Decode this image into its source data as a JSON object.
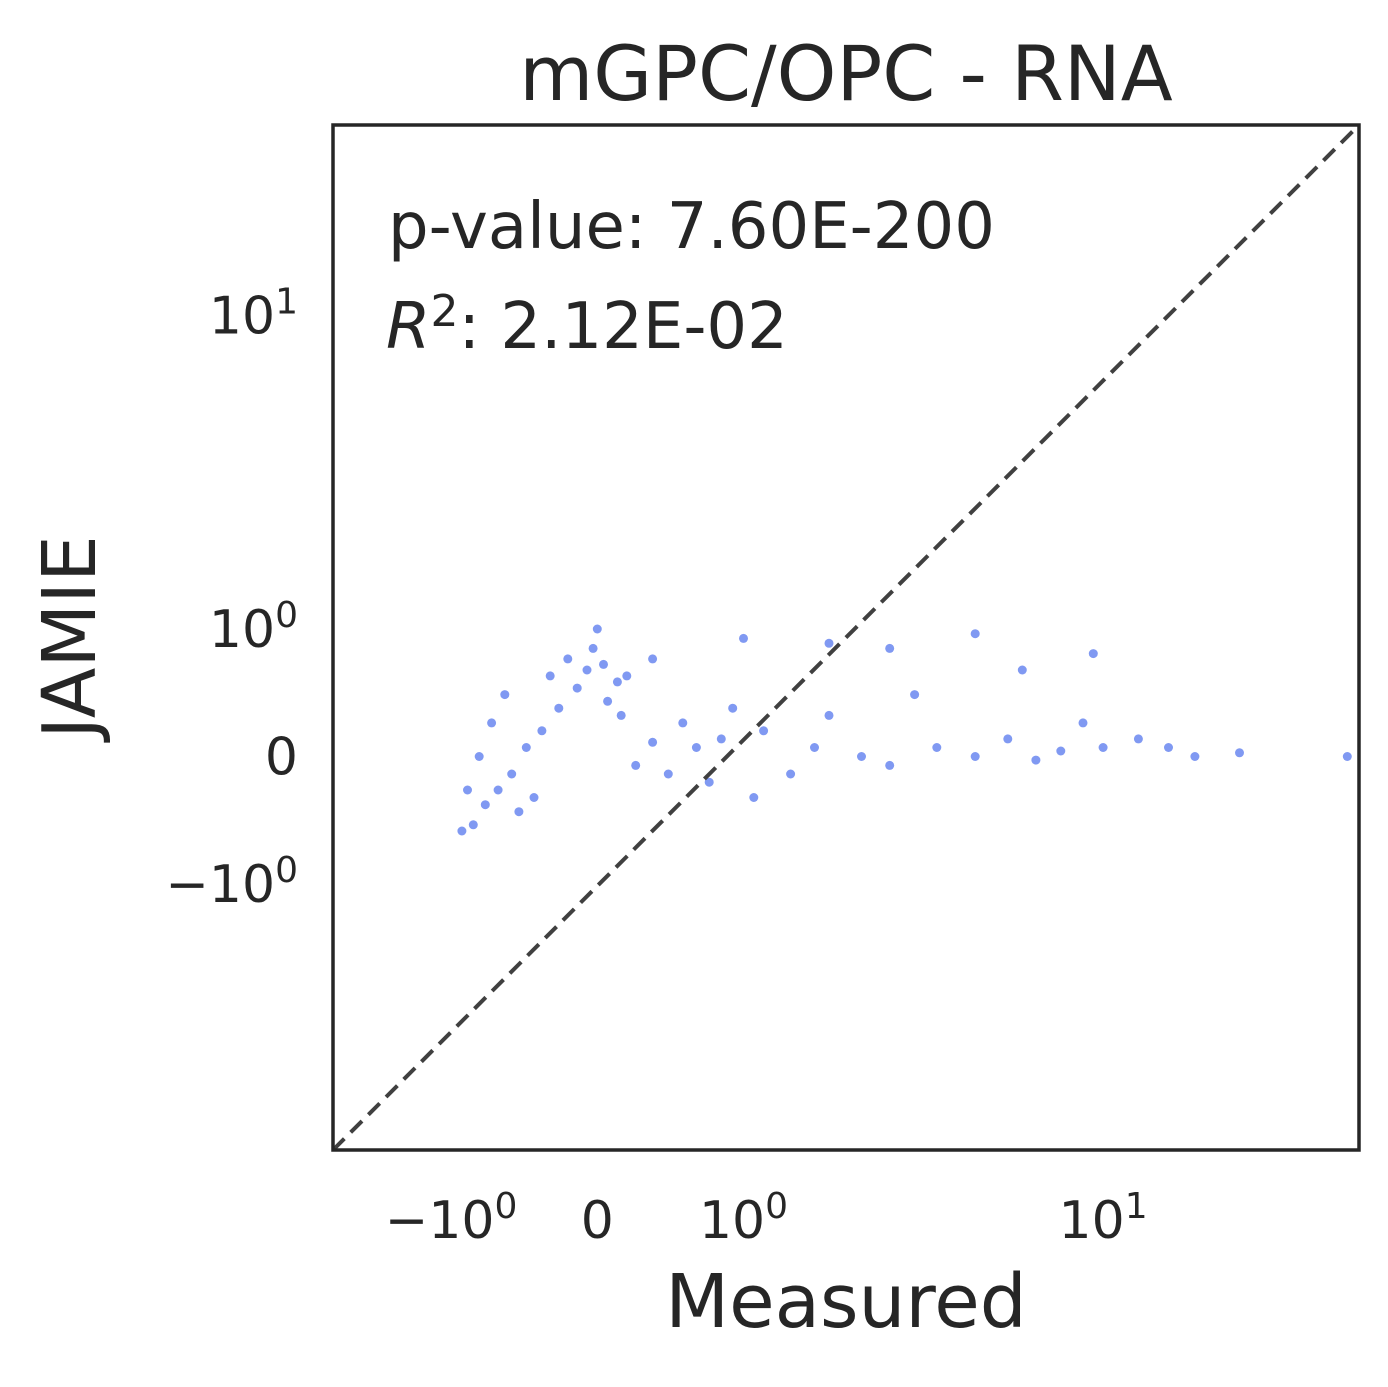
{
  "chart_data": {
    "type": "scatter",
    "title": "mGPC/OPC - RNA",
    "xlabel": "Measured",
    "ylabel": "JAMIE",
    "xscale": "symlog",
    "yscale": "symlog",
    "xlim": [
      -2.5,
      36
    ],
    "ylim": [
      -7.5,
      30
    ],
    "xticks": [
      {
        "value": -1,
        "base": "−10",
        "exp": "0"
      },
      {
        "value": 0,
        "base": "0",
        "exp": ""
      },
      {
        "value": 1,
        "base": "10",
        "exp": "0"
      },
      {
        "value": 10,
        "base": "10",
        "exp": "1"
      }
    ],
    "yticks": [
      {
        "value": -1,
        "base": "−10",
        "exp": "0"
      },
      {
        "value": 0,
        "base": "0",
        "exp": ""
      },
      {
        "value": 1,
        "base": "10",
        "exp": "0"
      },
      {
        "value": 10,
        "base": "10",
        "exp": "1"
      }
    ],
    "annotations": {
      "pvalue": "p-value: 7.60E-200",
      "r2_label": "R",
      "r2_exp": "2",
      "r2_value": ": 2.12E-02"
    },
    "identity_line": true,
    "grid": false,
    "legend": "none",
    "point_color": "#8099F2",
    "line_color": "#404040",
    "series": [
      {
        "points": [
          [
            -0.8,
            -0.45
          ],
          [
            -0.7,
            -0.3
          ],
          [
            -0.6,
            -0.2
          ],
          [
            -0.5,
            -0.1
          ],
          [
            -0.4,
            0.05
          ],
          [
            -0.3,
            0.15
          ],
          [
            -0.2,
            0.3
          ],
          [
            -0.1,
            0.45
          ],
          [
            -0.05,
            0.6
          ],
          [
            -0.02,
            0.8
          ],
          [
            0.0,
            1.0
          ],
          [
            0.03,
            0.65
          ],
          [
            -0.9,
            -0.5
          ],
          [
            -0.85,
            -0.2
          ],
          [
            -0.75,
            0.0
          ],
          [
            -0.65,
            0.2
          ],
          [
            -0.55,
            0.4
          ],
          [
            -0.45,
            -0.35
          ],
          [
            -0.35,
            -0.25
          ],
          [
            -0.25,
            0.55
          ],
          [
            -0.15,
            0.7
          ],
          [
            0.05,
            0.35
          ],
          [
            0.1,
            0.5
          ],
          [
            0.12,
            0.25
          ],
          [
            0.2,
            -0.05
          ],
          [
            0.3,
            0.08
          ],
          [
            0.4,
            -0.1
          ],
          [
            0.5,
            0.2
          ],
          [
            0.6,
            0.05
          ],
          [
            0.7,
            -0.15
          ],
          [
            0.8,
            0.1
          ],
          [
            0.9,
            0.3
          ],
          [
            1.0,
            0.9
          ],
          [
            1.2,
            0.15
          ],
          [
            1.5,
            -0.1
          ],
          [
            1.8,
            0.05
          ],
          [
            2.0,
            0.25
          ],
          [
            2.5,
            0.0
          ],
          [
            3.0,
            -0.05
          ],
          [
            3.5,
            0.4
          ],
          [
            4.0,
            0.05
          ],
          [
            5.0,
            0.0
          ],
          [
            6.0,
            0.1
          ],
          [
            7.0,
            -0.02
          ],
          [
            8.0,
            0.03
          ],
          [
            9.0,
            0.2
          ],
          [
            10.0,
            0.05
          ],
          [
            12.0,
            0.1
          ],
          [
            14.0,
            0.05
          ],
          [
            16.0,
            0.0
          ],
          [
            20.0,
            0.02
          ],
          [
            34.0,
            0.0
          ],
          [
            2.0,
            0.85
          ],
          [
            3.0,
            0.8
          ],
          [
            5.0,
            0.95
          ],
          [
            6.5,
            0.6
          ],
          [
            9.5,
            0.75
          ],
          [
            0.15,
            0.55
          ],
          [
            0.3,
            0.7
          ],
          [
            1.1,
            -0.25
          ]
        ]
      }
    ]
  }
}
